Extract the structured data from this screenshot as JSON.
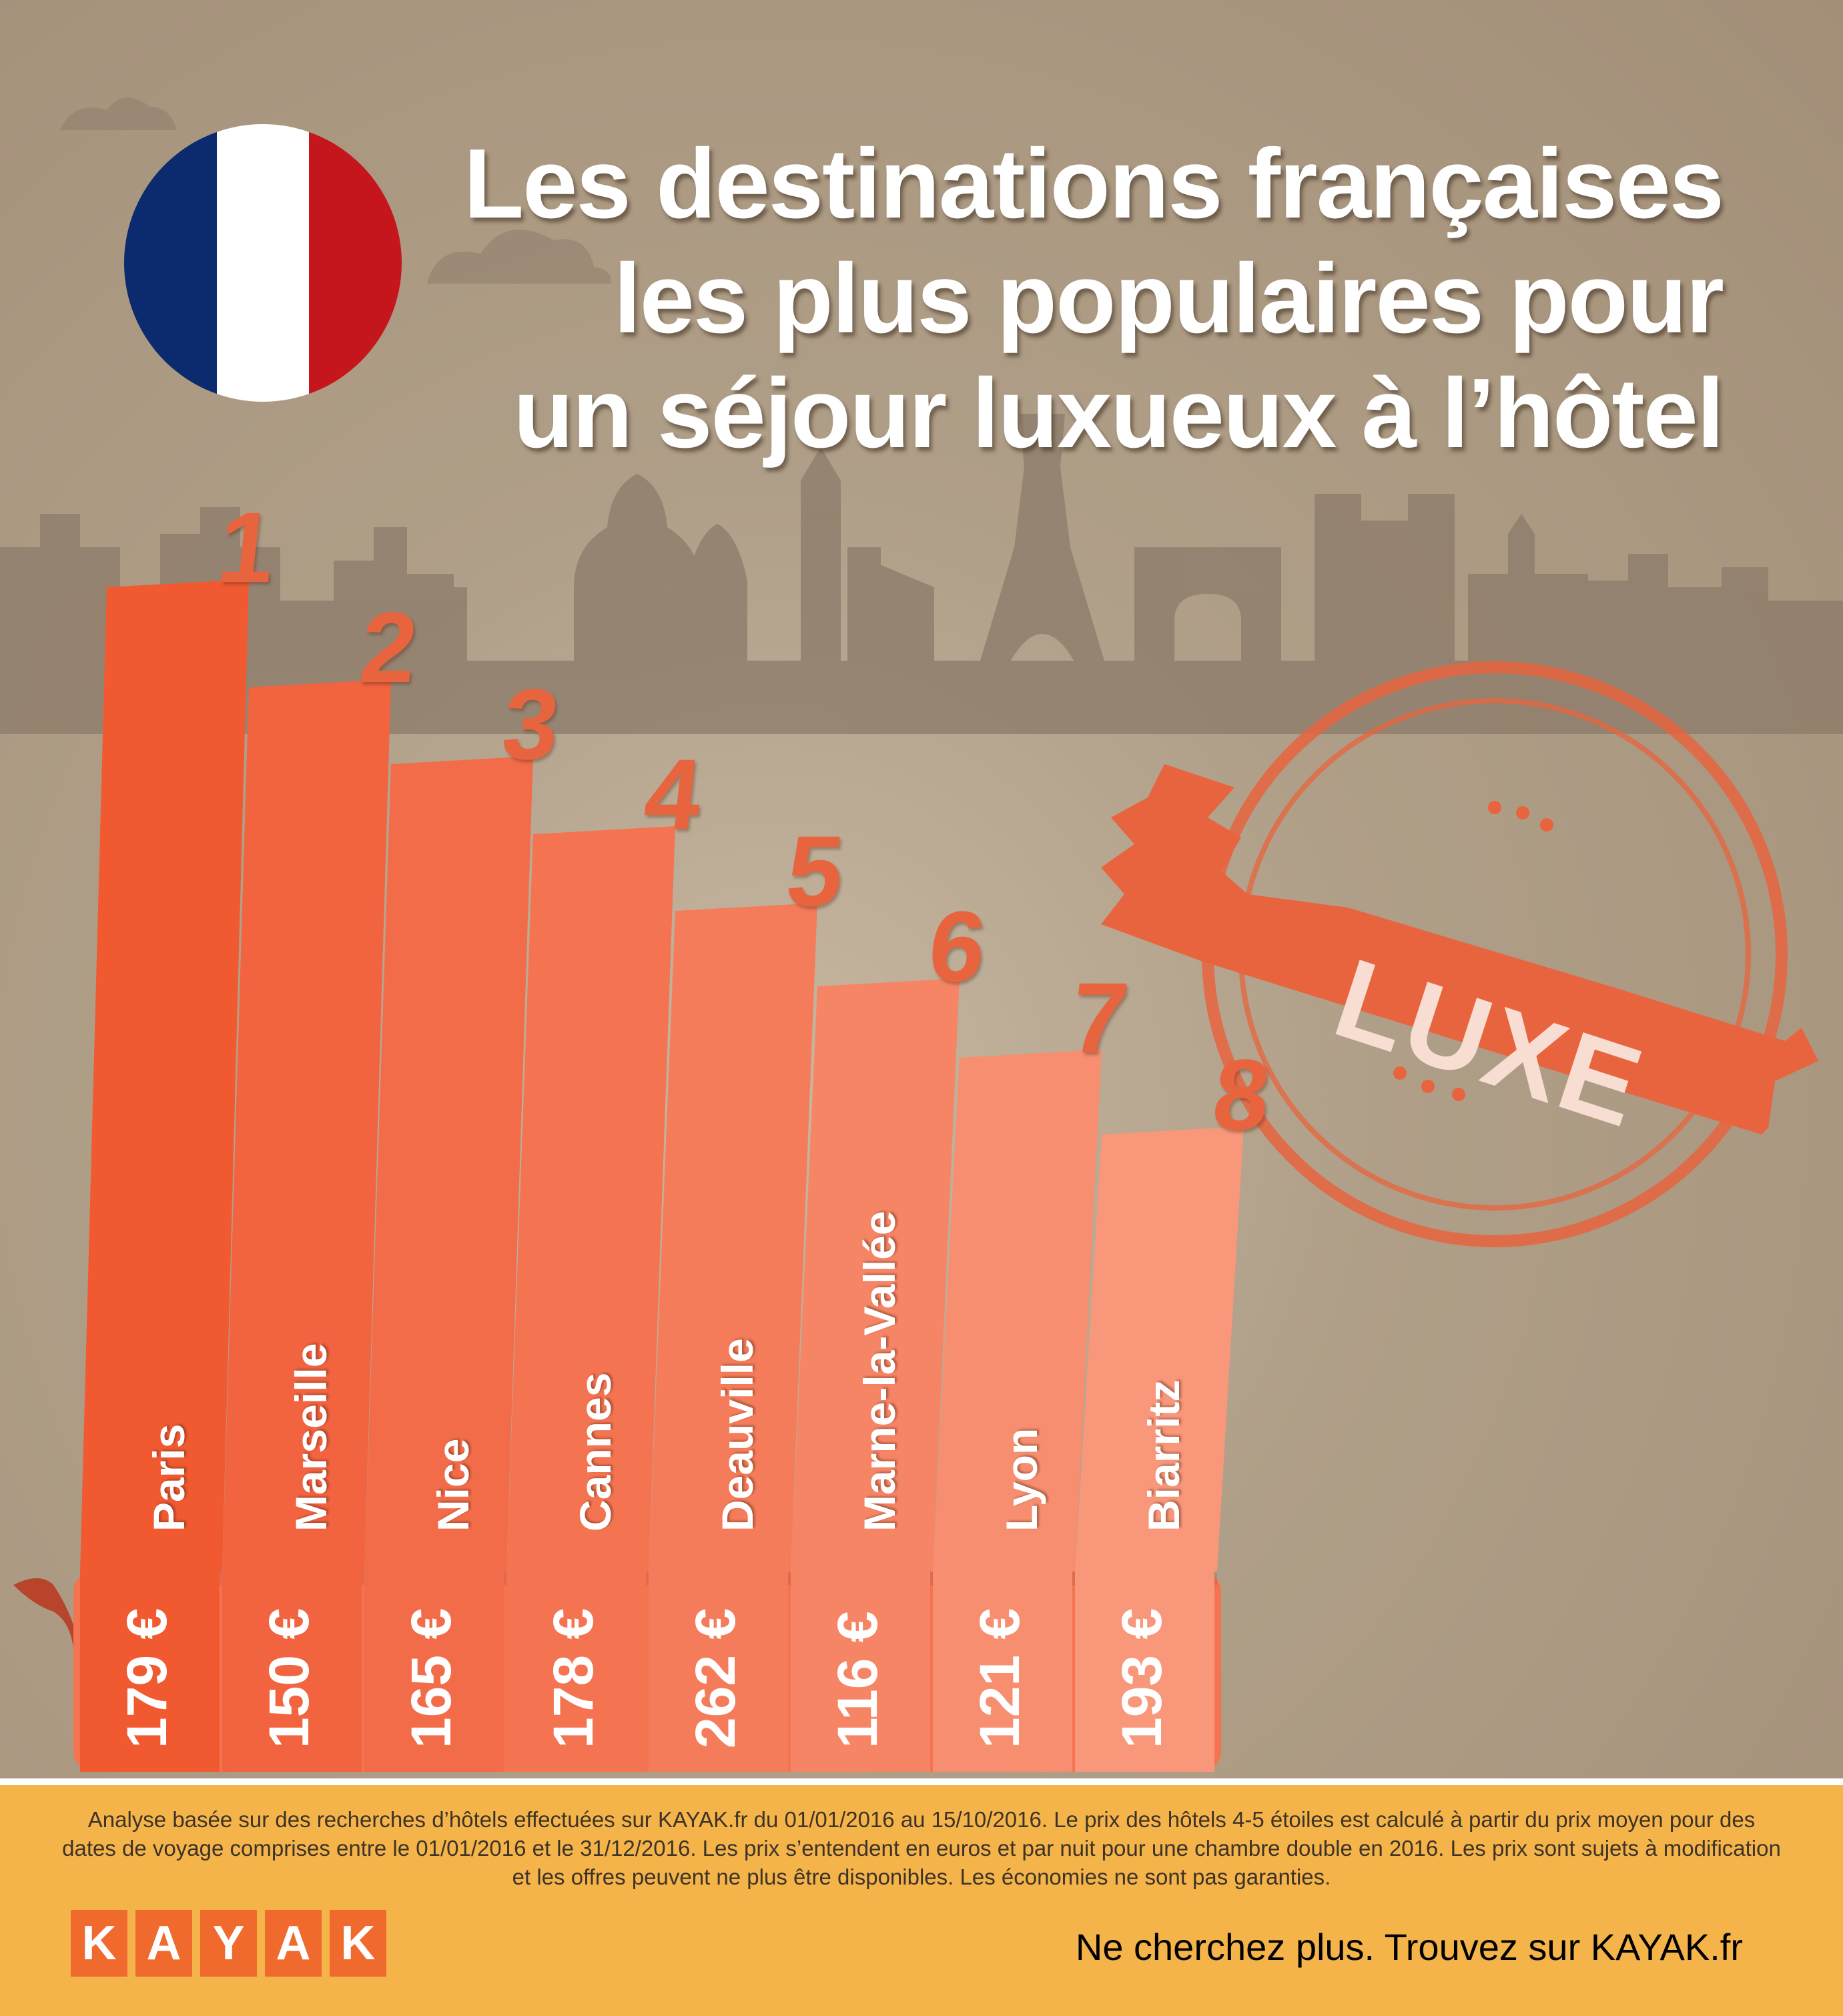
{
  "title_lines": [
    "Les destinations françaises",
    "les plus populaires pour",
    "un séjour luxueux à l’hôtel"
  ],
  "stamp_label": "LUXE",
  "flag_colors": [
    "#0c2a6e",
    "#ffffff",
    "#c4161c"
  ],
  "bar_colors": [
    "#f15a31",
    "#f26340",
    "#f36c4a",
    "#f47452",
    "#f57c5a",
    "#f68565",
    "#f78e70",
    "#f8977a"
  ],
  "destinations": [
    {
      "rank": "1",
      "city": "Paris",
      "price": "179 €"
    },
    {
      "rank": "2",
      "city": "Marseille",
      "price": "150 €"
    },
    {
      "rank": "3",
      "city": "Nice",
      "price": "165 €"
    },
    {
      "rank": "4",
      "city": "Cannes",
      "price": "178 €"
    },
    {
      "rank": "5",
      "city": "Deauville",
      "price": "262 €"
    },
    {
      "rank": "6",
      "city": "Marne-la-Vallée",
      "price": "116 €"
    },
    {
      "rank": "7",
      "city": "Lyon",
      "price": "121 €"
    },
    {
      "rank": "8",
      "city": "Biarritz",
      "price": "193 €"
    }
  ],
  "footer": {
    "disclaimer": "Analyse basée sur des recherches d’hôtels effectuées sur KAYAK.fr du 01/01/2016 au 15/10/2016. Le prix des hôtels 4-5 étoiles est calculé à partir du prix moyen pour des dates de voyage comprises entre le 01/01/2016 et le 31/12/2016. Les prix s’entendent en euros et par nuit pour une chambre double en 2016. Les prix sont sujets à modification et les offres peuvent ne plus être disponibles. Les économies ne sont pas garanties.",
    "logo_letters": [
      "K",
      "A",
      "Y",
      "A",
      "K"
    ],
    "tagline": "Ne cherchez plus. Trouvez sur KAYAK.fr"
  }
}
